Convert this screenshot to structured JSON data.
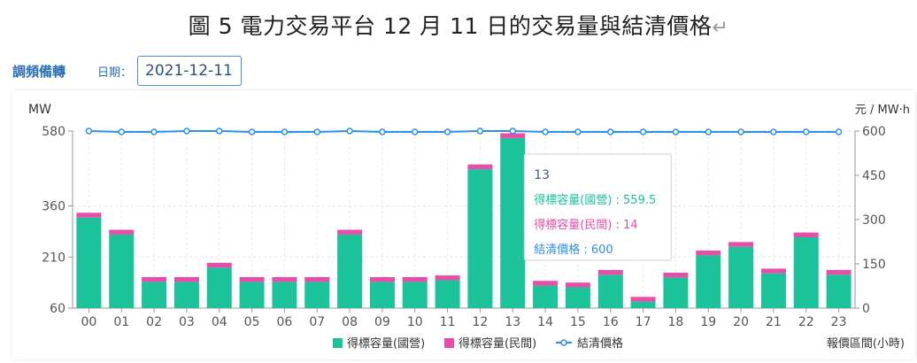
{
  "document": {
    "caption": "圖 5 電力交易平台 12 月 11 日的交易量與結清價格",
    "return_mark": "↵"
  },
  "controls": {
    "tab_label": "調頻備轉",
    "date_label": "日期：",
    "date_value": "2021-12-11"
  },
  "chart_data": {
    "type": "bar",
    "title": "",
    "categories": [
      "00",
      "01",
      "02",
      "03",
      "04",
      "05",
      "06",
      "07",
      "08",
      "09",
      "10",
      "11",
      "12",
      "13",
      "14",
      "15",
      "16",
      "17",
      "18",
      "19",
      "20",
      "21",
      "22",
      "23"
    ],
    "series": [
      {
        "name": "得標容量(國營)",
        "kind": "stacked-bar",
        "axis": "left",
        "color": "#1cc29a",
        "values": [
          326,
          276,
          137,
          137,
          179,
          137,
          137,
          137,
          276,
          137,
          137,
          142,
          468,
          559.5,
          126,
          121,
          158,
          79,
          150,
          215,
          240,
          162,
          268,
          158
        ]
      },
      {
        "name": "得標容量(民間)",
        "kind": "stacked-bar",
        "axis": "left",
        "color": "#e64ea7",
        "values": [
          14,
          14,
          14,
          14,
          14,
          14,
          14,
          14,
          14,
          14,
          14,
          14,
          14,
          14,
          14,
          14,
          14,
          14,
          14,
          14,
          14,
          14,
          14,
          14
        ]
      },
      {
        "name": "結清價格",
        "kind": "line",
        "axis": "right",
        "color": "#2b8ef0",
        "values": [
          600,
          597,
          597,
          600,
          600,
          597,
          597,
          597,
          600,
          597,
          597,
          597,
          600,
          600,
          597,
          597,
          597,
          597,
          597,
          597,
          597,
          597,
          597,
          597
        ]
      }
    ],
    "ylabel": "MW",
    "y2label": "元 / MW·h",
    "xlabel": "報價區間(小時)",
    "ylim": [
      60,
      580
    ],
    "yticks": [
      60,
      210,
      360,
      580
    ],
    "y2lim": [
      0,
      600
    ],
    "y2ticks": [
      0,
      150,
      300,
      450,
      600
    ],
    "legend_position": "bottom-center",
    "grid": true,
    "tooltip": {
      "category": "13",
      "rows": [
        {
          "label": "得標容量(國營)",
          "value": "559.5",
          "color": "#1cc29a"
        },
        {
          "label": "得標容量(民間)",
          "value": "14",
          "color": "#e64ea7"
        },
        {
          "label": "結清價格",
          "value": "600",
          "color": "#2b8ef0"
        }
      ]
    }
  }
}
